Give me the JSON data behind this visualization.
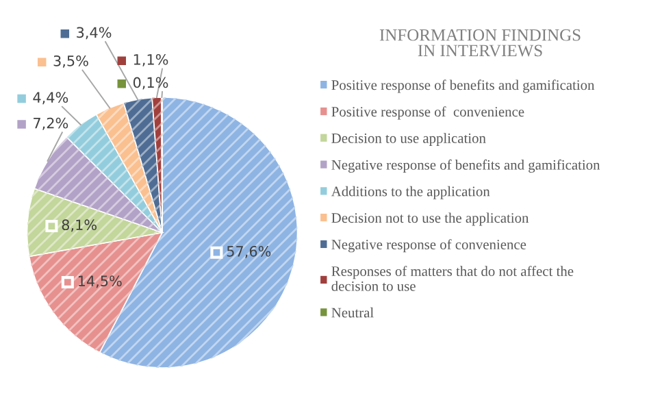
{
  "chart_data": {
    "type": "pie",
    "title": "INFORMATION FINDINGS IN INTERVIEWS",
    "categories": [
      "Positive response of benefits and gamification",
      "Positive response of  convenience",
      "Decision to use application",
      "Negative response of benefits and gamification",
      "Additions to the application",
      "Decision not to use the application",
      "Negative response of convenience",
      "Responses of matters that do not affect the decision to use",
      "Neutral"
    ],
    "values": [
      57.6,
      14.5,
      8.1,
      7.2,
      4.4,
      3.5,
      3.4,
      1.1,
      0.1
    ],
    "value_labels": [
      "57,6%",
      "14,5%",
      "8,1%",
      "7,2%",
      "4,4%",
      "3,5%",
      "3,4%",
      "1,1%",
      "0,1%"
    ],
    "colors": [
      "#8eb4e3",
      "#e6918f",
      "#c3d69b",
      "#b3a2c7",
      "#93cddd",
      "#fac090",
      "#4f6d94",
      "#a0403d",
      "#77933c"
    ],
    "legend": "right"
  }
}
